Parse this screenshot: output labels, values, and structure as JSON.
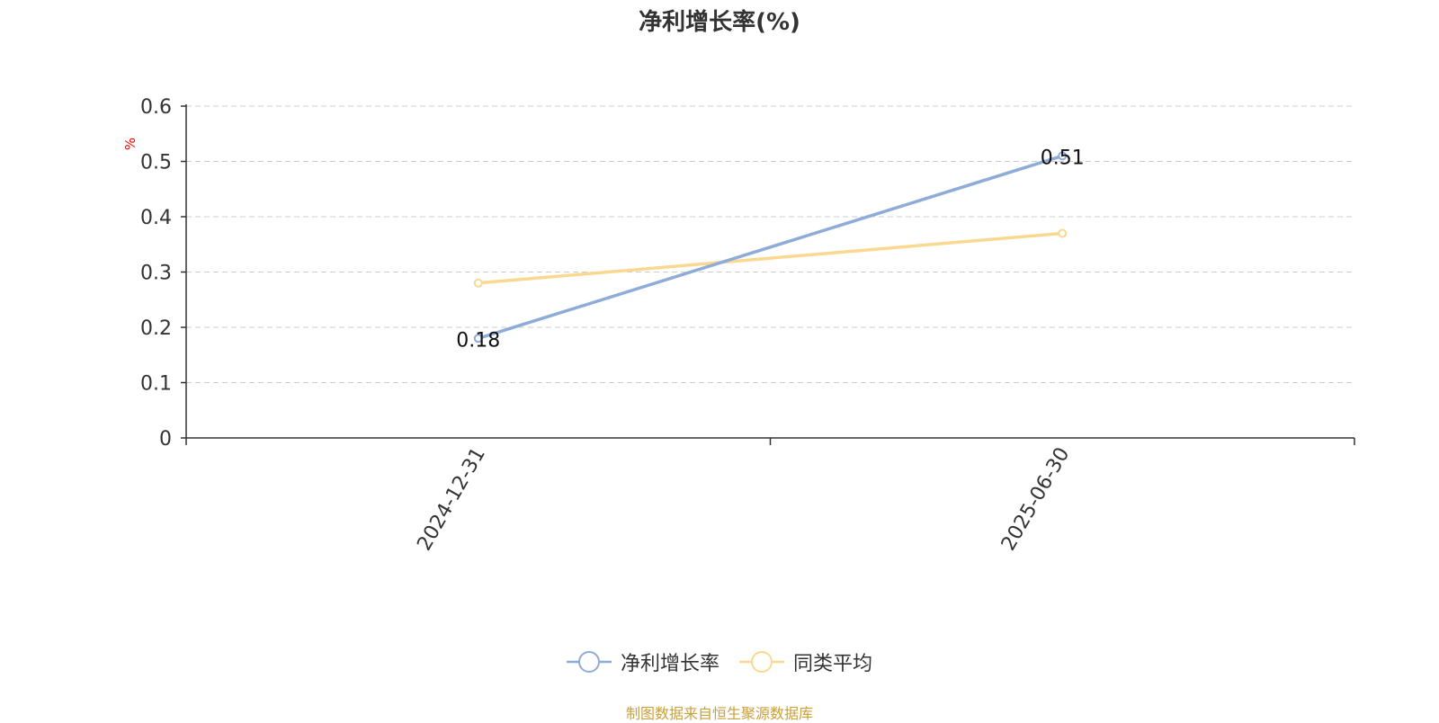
{
  "chart_data": {
    "type": "line",
    "title": "净利增长率(%)",
    "ylabel": "%",
    "xlabel": "",
    "categories": [
      "2024-12-31",
      "2025-06-30"
    ],
    "ylim": [
      0,
      0.6
    ],
    "yticks": [
      "0",
      "0.1",
      "0.2",
      "0.3",
      "0.4",
      "0.5",
      "0.6"
    ],
    "grid": true,
    "legend_position": "bottom",
    "series": [
      {
        "name": "净利增长率",
        "values": [
          0.18,
          0.51
        ],
        "color": "#8eacd7",
        "data_labels": [
          "0.18",
          "0.51"
        ]
      },
      {
        "name": "同类平均",
        "values": [
          0.28,
          0.37
        ],
        "color": "#fbd891",
        "data_labels": null
      }
    ]
  },
  "colors": {
    "ylabel": "#ff0000",
    "source": "#c8a03c",
    "axis": "#333333",
    "grid": "#cccccc"
  },
  "source_note": "制图数据来自恒生聚源数据库"
}
